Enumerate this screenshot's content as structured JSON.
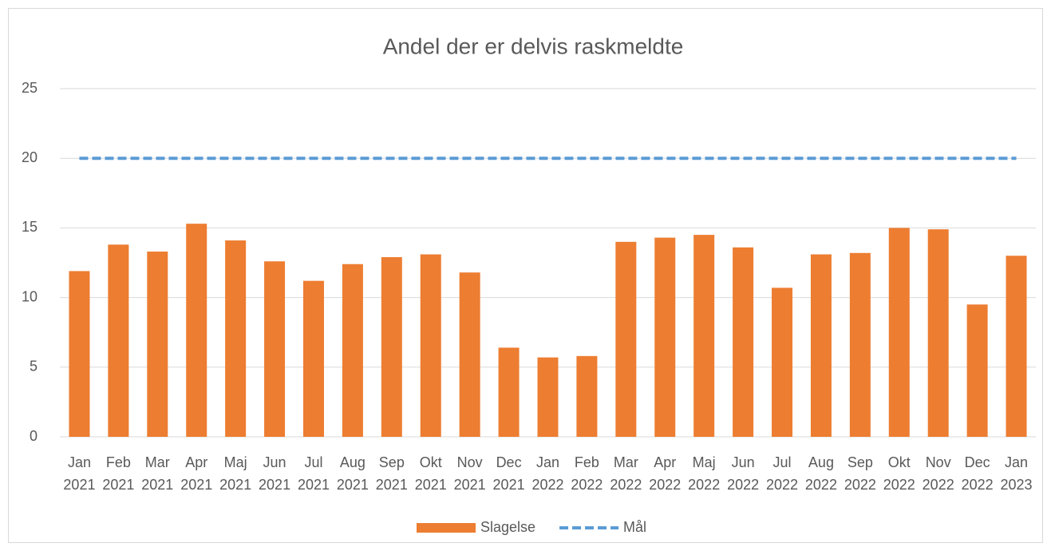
{
  "chart_data": {
    "type": "bar",
    "title": "Andel der er delvis raskmeldte",
    "categories": [
      "Jan 2021",
      "Feb 2021",
      "Mar 2021",
      "Apr 2021",
      "Maj 2021",
      "Jun 2021",
      "Jul 2021",
      "Aug 2021",
      "Sep 2021",
      "Okt 2021",
      "Nov 2021",
      "Dec 2021",
      "Jan 2022",
      "Feb 2022",
      "Mar 2022",
      "Apr 2022",
      "Maj 2022",
      "Jun 2022",
      "Jul 2022",
      "Aug 2022",
      "Sep 2022",
      "Okt 2022",
      "Nov 2022",
      "Dec 2022",
      "Jan 2023"
    ],
    "series": [
      {
        "name": "Slagelse",
        "type": "bar",
        "color": "#ed7d31",
        "values": [
          11.9,
          13.8,
          13.3,
          15.3,
          14.1,
          12.6,
          11.2,
          12.4,
          12.9,
          13.1,
          11.8,
          6.4,
          5.7,
          5.8,
          14.0,
          14.3,
          14.5,
          13.6,
          10.7,
          13.1,
          13.2,
          15.0,
          14.9,
          9.5,
          13.0
        ]
      },
      {
        "name": "Mål",
        "type": "line",
        "dashed": true,
        "color": "#5b9bd5",
        "values": [
          20,
          20,
          20,
          20,
          20,
          20,
          20,
          20,
          20,
          20,
          20,
          20,
          20,
          20,
          20,
          20,
          20,
          20,
          20,
          20,
          20,
          20,
          20,
          20,
          20
        ]
      }
    ],
    "ylim": [
      0,
      25
    ],
    "yticks": [
      0,
      5,
      10,
      15,
      20,
      25
    ],
    "grid": true,
    "legend": "bottom"
  }
}
